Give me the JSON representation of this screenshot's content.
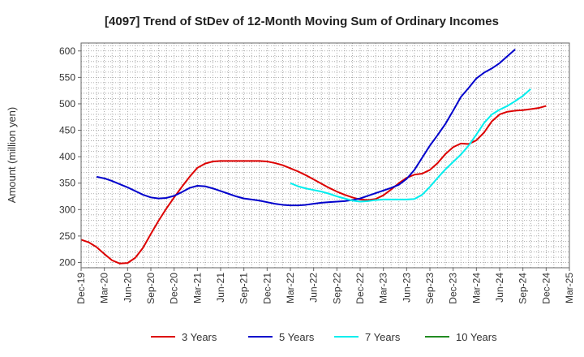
{
  "chart_data": {
    "type": "line",
    "title": "[4097]  Trend of StDev of 12-Month Moving Sum of Ordinary Incomes",
    "xlabel": "",
    "ylabel": "Amount (million yen)",
    "ylim": [
      190,
      615
    ],
    "yticks": [
      200,
      250,
      300,
      350,
      400,
      450,
      500,
      550,
      600
    ],
    "x_range": [
      0,
      63
    ],
    "x_tick_positions": [
      0,
      3,
      6,
      9,
      12,
      15,
      18,
      21,
      24,
      27,
      30,
      33,
      36,
      39,
      42,
      45,
      48,
      51,
      54,
      57,
      60,
      63
    ],
    "x_tick_labels": [
      "Dec-19",
      "Mar-20",
      "Jun-20",
      "Sep-20",
      "Dec-20",
      "Mar-21",
      "Jun-21",
      "Sep-21",
      "Dec-21",
      "Mar-22",
      "Jun-22",
      "Sep-22",
      "Dec-22",
      "Mar-23",
      "Jun-23",
      "Sep-23",
      "Dec-23",
      "Mar-24",
      "Jun-24",
      "Sep-24",
      "Dec-24",
      "Mar-25"
    ],
    "grid": true,
    "legend_position": "bottom",
    "series": [
      {
        "name": "3 Years",
        "color": "#dd0000",
        "start": 0,
        "values": [
          243,
          238,
          229,
          216,
          204,
          198,
          199,
          209,
          228,
          254,
          279,
          302,
          323,
          343,
          362,
          379,
          387,
          391,
          392,
          392,
          392,
          392,
          392,
          392,
          391,
          388,
          384,
          378,
          372,
          365,
          357,
          349,
          341,
          334,
          328,
          323,
          319,
          318,
          320,
          327,
          338,
          350,
          360,
          366,
          368,
          375,
          388,
          405,
          418,
          425,
          424,
          431,
          446,
          467,
          480,
          485,
          487,
          488,
          490,
          492,
          496
        ]
      },
      {
        "name": "5 Years",
        "color": "#0000cc",
        "start": 2,
        "values": [
          362,
          359,
          354,
          348,
          342,
          335,
          328,
          323,
          321,
          322,
          326,
          333,
          341,
          345,
          344,
          340,
          335,
          330,
          325,
          321,
          319,
          317,
          314,
          311,
          309,
          308,
          308,
          309,
          311,
          313,
          314,
          315,
          316,
          318,
          321,
          326,
          331,
          336,
          341,
          347,
          358,
          375,
          398,
          421,
          441,
          462,
          487,
          513,
          530,
          548,
          559,
          567,
          577,
          590,
          603
        ]
      },
      {
        "name": "7 Years",
        "color": "#00eeee",
        "start": 27,
        "values": [
          350,
          344,
          340,
          337,
          334,
          330,
          325,
          321,
          317,
          315,
          316,
          318,
          319,
          319,
          319,
          319,
          320,
          328,
          343,
          360,
          376,
          390,
          404,
          421,
          442,
          464,
          480,
          489,
          496,
          505,
          515,
          528
        ]
      },
      {
        "name": "10 Years",
        "color": "#228b22",
        "start": 0,
        "values": []
      }
    ]
  }
}
